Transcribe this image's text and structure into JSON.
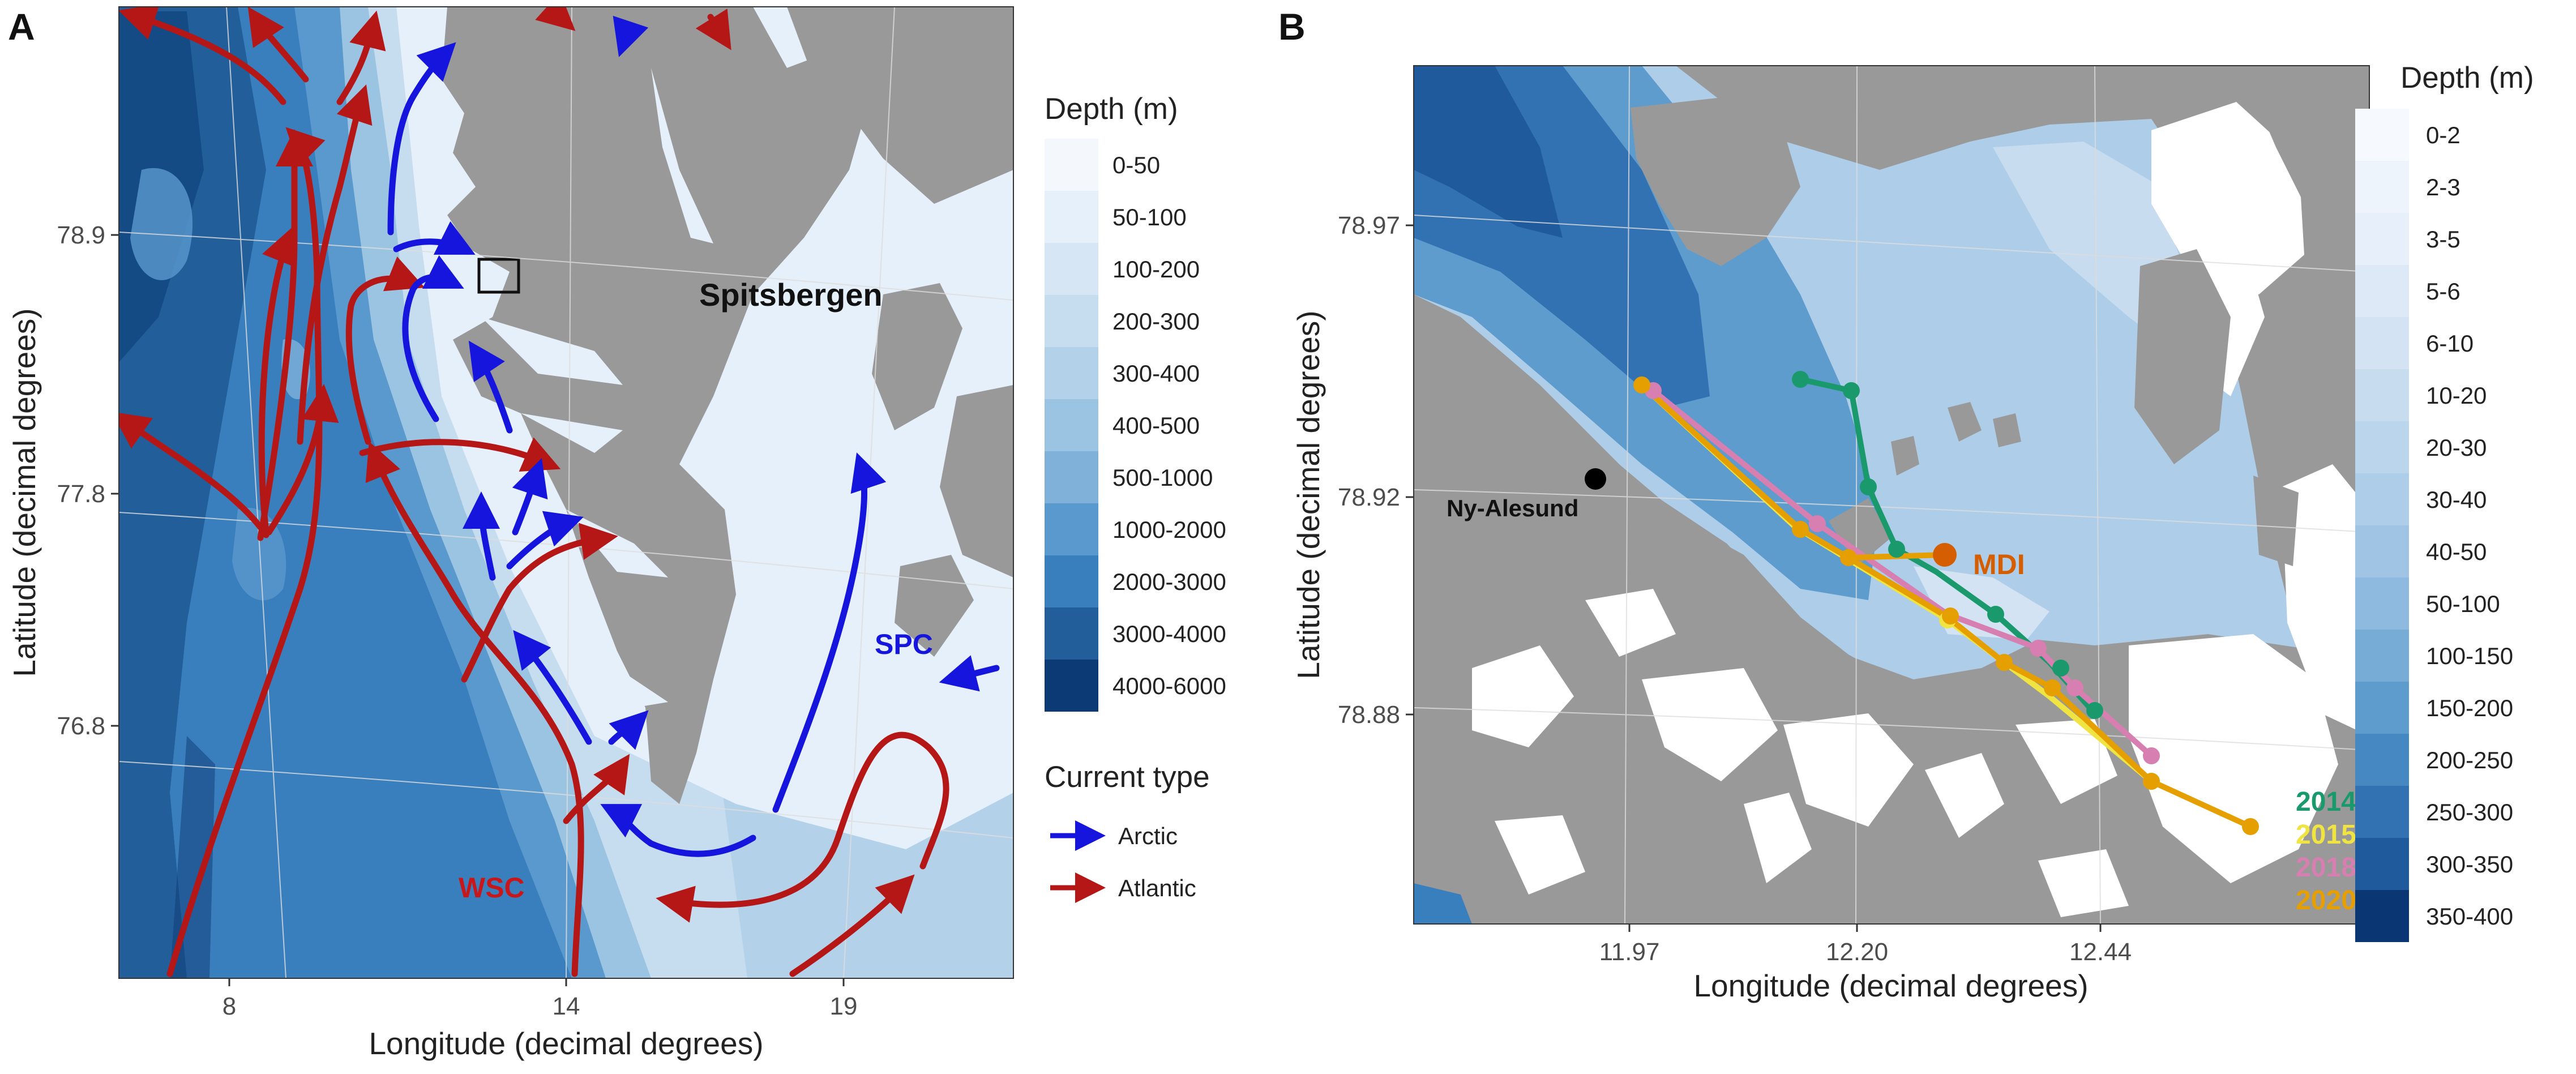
{
  "panel_a": {
    "letter": "A",
    "x_title": "Longitude (decimal degrees)",
    "y_title": "Latitude (decimal degrees)",
    "x_ticks": [
      "8",
      "14",
      "19"
    ],
    "y_ticks": [
      "78.9",
      "77.8",
      "76.8"
    ],
    "labels": {
      "island": "Spitsbergen",
      "spc": "SPC",
      "wsc": "WSC"
    },
    "legend_depth_title": "Depth (m)",
    "depth_classes": [
      "0-50",
      "50-100",
      "100-200",
      "200-300",
      "300-400",
      "400-500",
      "500-1000",
      "1000-2000",
      "2000-3000",
      "3000-4000",
      "4000-6000"
    ],
    "depth_colors": [
      "#f4f8fd",
      "#e6f0fa",
      "#d6e6f4",
      "#c6dcef",
      "#b3d1e9",
      "#9bc4e2",
      "#7fb1d9",
      "#5a99cd",
      "#3a7fbd",
      "#225f9a",
      "#0b3a74"
    ],
    "legend_current_title": "Current type",
    "current_types": [
      {
        "label": "Arctic",
        "color": "#1515dd"
      },
      {
        "label": "Atlantic",
        "color": "#b51717"
      }
    ]
  },
  "panel_b": {
    "letter": "B",
    "x_title": "Longitude (decimal degrees)",
    "y_title": "Latitude (decimal degrees)",
    "x_ticks": [
      "11.97",
      "12.20",
      "12.44"
    ],
    "y_ticks": [
      "78.97",
      "78.92",
      "78.88"
    ],
    "labels": {
      "town": "Ny-Alesund",
      "mdi": "MDI"
    },
    "legend_depth_title": "Depth (m)",
    "depth_classes": [
      "0-2",
      "2-3",
      "3-5",
      "5-6",
      "6-10",
      "10-20",
      "20-30",
      "30-40",
      "40-50",
      "50-100",
      "100-150",
      "150-200",
      "200-250",
      "250-300",
      "300-350",
      "350-400"
    ],
    "depth_colors": [
      "#f6f9fe",
      "#eef4fb",
      "#e6effa",
      "#dde9f6",
      "#d3e3f3",
      "#c7dcef",
      "#bbd5ec",
      "#aecde8",
      "#a0c4e3",
      "#8dbade",
      "#76acd6",
      "#5d9ccd",
      "#4688c2",
      "#3272b2",
      "#1f5a9c",
      "#0a3773"
    ],
    "years": [
      {
        "label": "2014",
        "color": "#1a9a6c"
      },
      {
        "label": "2015",
        "color": "#f0e442"
      },
      {
        "label": "2018",
        "color": "#d67fb0"
      },
      {
        "label": "2020",
        "color": "#e69f00"
      }
    ],
    "mdi_color": "#d55e00"
  }
}
